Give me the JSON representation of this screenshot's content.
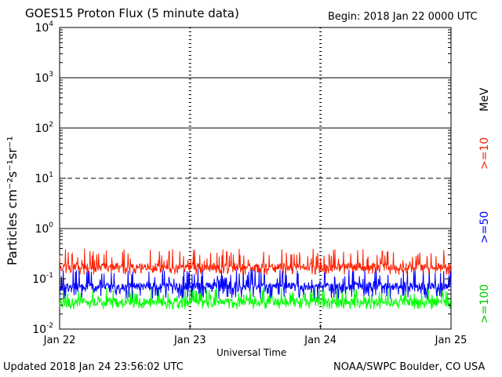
{
  "header": {
    "title": "GOES15 Proton Flux (5 minute data)",
    "begin": "Begin: 2018 Jan 22 0000 UTC"
  },
  "footer": {
    "updated": "Updated 2018 Jan 24 23:56:02 UTC",
    "credit": "NOAA/SWPC Boulder, CO USA"
  },
  "chart_data": {
    "type": "line",
    "title": "GOES15 Proton Flux (5 minute data)",
    "xlabel": "Universal Time",
    "ylabel": "Particles cm⁻²s⁻¹sr⁻¹",
    "yscale": "log",
    "ylim": [
      0.01,
      10000
    ],
    "xlim": [
      "2018-01-22 00:00",
      "2018-01-25 00:00"
    ],
    "x_ticks": [
      "Jan 22",
      "Jan 23",
      "Jan 24",
      "Jan 25"
    ],
    "y_ticks": [
      {
        "base": "10",
        "exp": "4",
        "value": 10000
      },
      {
        "base": "10",
        "exp": "3",
        "value": 1000
      },
      {
        "base": "10",
        "exp": "2",
        "value": 100
      },
      {
        "base": "10",
        "exp": "1",
        "value": 10
      },
      {
        "base": "10",
        "exp": "0",
        "value": 1
      },
      {
        "base": "10",
        "exp": "-1",
        "value": 0.1
      },
      {
        "base": "10",
        "exp": "-2",
        "value": 0.01
      }
    ],
    "threshold_lines": [
      {
        "value": 1000,
        "style": "solid"
      },
      {
        "value": 100,
        "style": "solid"
      },
      {
        "value": 10,
        "style": "dashed"
      },
      {
        "value": 1,
        "style": "solid"
      }
    ],
    "legend_unit": "MeV",
    "series": [
      {
        "name": ">=10",
        "color": "#ff2000",
        "typical_value": 0.17,
        "range": [
          0.12,
          0.4
        ]
      },
      {
        "name": ">=50",
        "color": "#0000ff",
        "typical_value": 0.07,
        "range": [
          0.04,
          0.16
        ]
      },
      {
        "name": ">=100",
        "color": "#00ff00",
        "typical_value": 0.035,
        "range": [
          0.025,
          0.07
        ]
      }
    ],
    "grid": "day dividers at day boundaries"
  }
}
